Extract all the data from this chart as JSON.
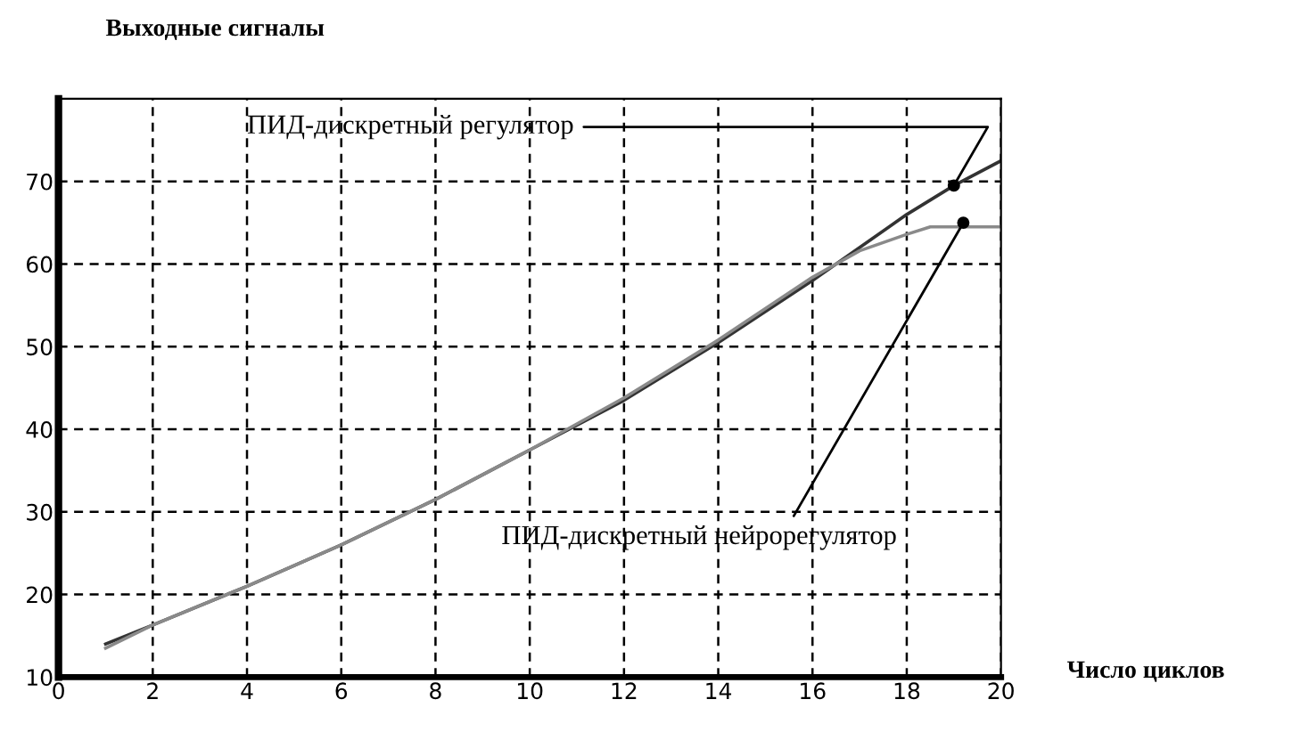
{
  "chart_data": {
    "type": "line",
    "xlabel": "Число циклов",
    "ylabel": "Выходные сигналы",
    "series": [
      {
        "color": "#333333",
        "x": [
          1,
          2,
          4,
          6,
          8,
          10,
          12,
          14,
          16,
          18,
          19,
          20
        ],
        "values": [
          14,
          16.3,
          21,
          26,
          31.5,
          37.5,
          43.5,
          50.5,
          58,
          66,
          69.5,
          72.5
        ]
      },
      {
        "color": "#8a8a8a",
        "x": [
          1,
          2,
          4,
          6,
          8,
          10,
          12,
          14,
          15,
          16,
          17,
          18,
          18.5,
          20
        ],
        "values": [
          13.5,
          16.3,
          21,
          26,
          31.5,
          37.5,
          43.8,
          50.8,
          54.6,
          58.4,
          61.6,
          63.6,
          64.5,
          64.5
        ]
      }
    ],
    "annotations": [
      {
        "text": "ПИД-дискретный регулятор",
        "x": 19,
        "y": 69.5
      },
      {
        "text": "ПИД-дискретный нейрорегулятор",
        "x": 19.2,
        "y": 65
      }
    ],
    "xlim": [
      0,
      20
    ],
    "ylim": [
      10,
      80
    ],
    "xticks": [
      0,
      2,
      4,
      6,
      8,
      10,
      12,
      14,
      16,
      18,
      20
    ],
    "yticks": [
      10,
      20,
      30,
      40,
      50,
      60,
      70
    ],
    "grid": true,
    "line_style": "solid",
    "marker": "none",
    "legend": false
  }
}
